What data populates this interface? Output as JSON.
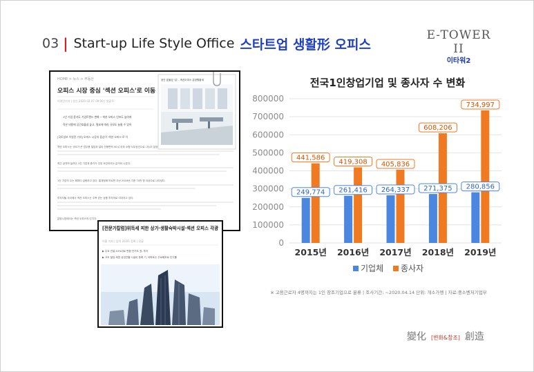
{
  "header": {
    "section_number": "03",
    "divider": "|",
    "title_en": "Start-up Life Style Office",
    "title_ko": "스타트업 생활形 오피스"
  },
  "logo": {
    "name": "E-TOWER II",
    "subtitle": "이타워2"
  },
  "news_main": {
    "crumb": "HOME > 뉴스 > 부동산",
    "headline": "오피스 시장 중심 '섹션 오피스'로 이동",
    "meta": "이영민기자 | 승인 2020.02.07 09:00 | 댓글 0",
    "lead1": "1인 기업 증가도 기업트렌드 변화 ─ 섹션 오피스 인프도 높아져",
    "lead2": "작은 비용에 공간효율성 높고, 필요에 따라 규모도 늘릴 수 있어",
    "body1": "[국토일보 이영민 기자] 오피스 시장의 중심이 '섹션 오피스'로 이",
    "body2": "섹션 오피스는 규모가 큰 업무용 빌딩과 달리 전용면적 40㎡ 이하 소형 사무공간으로 나누어 분양하는 오피스를 말한다.",
    "body3": "최근 급격히 늘어난 1인 기업과 증가가 주된 요인이라는 분석이 나온다.",
    "body4": "1인 기업의 수는 해마다 급증하고 있다. 통계청에 따르면 지난 2018년 기준 70만 명 이상으로 나타났다.",
    "body5": "투자자들 사이에서 섹션 오피스는 주목 받는 상품 투자처로 여겨지고 있다.",
    "body6": "분양시장에서는 섹션 오피스의 인기가",
    "photo_caption": "공간 효율성 '갑'…섹션오피스 분양활황세"
  },
  "news_second": {
    "headline": "[전문가칼럼]위득세 피한 상가·생활숙박시설·섹션 오피스 각광",
    "meta": "이름 기자 | 입력 2020. 등록 | 댓글",
    "bullet1": "▶ 주요 건설 40%대로 변환 전거도 표..투자",
    "bullet2": "▶ 고도 빌딩 제업 상업건물 시설이 등록 기, 아파트는 주로배초로 인기를"
  },
  "chart_data": {
    "type": "bar",
    "title": "전국1인창업기업 및 종사자 수 변화",
    "categories": [
      "2015년",
      "2016년",
      "2017년",
      "2018년",
      "2019년"
    ],
    "series": [
      {
        "name": "기업체",
        "color": "#4b86e0",
        "values": [
          249774,
          261416,
          264337,
          271375,
          280856
        ]
      },
      {
        "name": "종사자",
        "color": "#f07a22",
        "values": [
          441586,
          419308,
          405836,
          608206,
          734997
        ]
      }
    ],
    "labels": {
      "기업체": [
        "249,774",
        "261,416",
        "264,337",
        "271,375",
        "280,856"
      ],
      "종사자": [
        "441,586",
        "419,308",
        "405,836",
        "608,206",
        "734,997"
      ]
    },
    "y_ticks": [
      "0",
      "100000",
      "200000",
      "300000",
      "400000",
      "500000",
      "600000",
      "700000",
      "800000"
    ],
    "ylim": [
      0,
      800000
    ],
    "grid": true,
    "legend": "bottom"
  },
  "source_note": "※ 고용근로자 4명까지는 1인 창조기업으로 분류 | 조사기간: ~2020.04.14 단위: 개소가멩 | 자료:중소벤처기업부",
  "footer": {
    "left": "變化",
    "middle": "[변화&창조]",
    "right": "創造"
  },
  "colors": {
    "accent_red": "#d0202c",
    "accent_blue": "#1f3fbf",
    "bar_blue": "#4b86e0",
    "bar_orange": "#f07a22"
  }
}
